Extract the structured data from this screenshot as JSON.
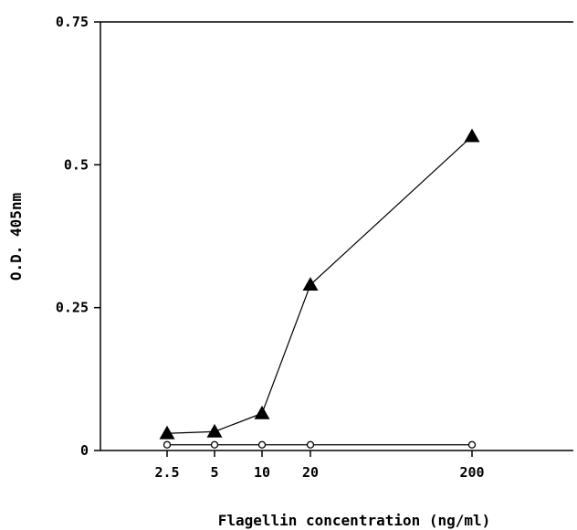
{
  "chart_data": {
    "type": "line",
    "title": "",
    "xlabel": "Flagellin concentration (ng/ml)",
    "ylabel": "O.D. 405nm",
    "x_ticks": [
      "2.5",
      "5",
      "10",
      "20",
      "200"
    ],
    "y_ticks": [
      "0",
      "0.25",
      "0.5",
      "0.75"
    ],
    "ylim": [
      0,
      0.75
    ],
    "grid": false,
    "legend": "none",
    "series": [
      {
        "marker": "filled-triangle",
        "values": [
          0.03,
          0.033,
          0.065,
          0.29,
          0.55
        ]
      },
      {
        "marker": "open-circle",
        "values": [
          0.01,
          0.01,
          0.01,
          0.01,
          0.01
        ]
      }
    ]
  }
}
